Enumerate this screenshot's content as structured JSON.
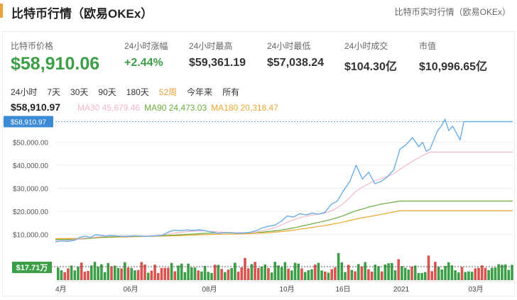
{
  "header": {
    "title": "比特币行情（欧易OKEx）",
    "link_label": "比特币实时行情（欧易OKEx）"
  },
  "stats": {
    "price_label": "比特币价格",
    "price_value": "$58,910.06",
    "change_label": "24小时涨幅",
    "change_value": "+2.44%",
    "high_label": "24小时最高",
    "high_value": "$59,361.19",
    "low_label": "24小时最低",
    "low_value": "$57,038.24",
    "volume_label": "24小时成交",
    "volume_value": "$104.30亿",
    "cap_label": "市值",
    "cap_value": "$10,996.65亿"
  },
  "ranges": {
    "items": [
      "24小时",
      "7天",
      "30天",
      "90天",
      "180天",
      "52周",
      "今年来",
      "所有"
    ],
    "active": "52周"
  },
  "legend": {
    "price": "$58,910.97",
    "ma30_label": "MA30 45,679.46",
    "ma90_label": "MA90 24,473.03",
    "ma180_label": "MA180 20,318.47"
  },
  "colors": {
    "accent": "#e8a33d",
    "up_green": "#3c9f47",
    "down_red": "#d9534f",
    "price_line": "#6aaee8",
    "ma30": "#f4b8c6",
    "ma90": "#6bab3c",
    "ma180": "#f0a830"
  },
  "chart_data": {
    "type": "line",
    "y_ticks": [
      "$50,000.00",
      "$40,000.00",
      "$30,000.00",
      "$20,000.00",
      "$10,000.00"
    ],
    "ylim": [
      0,
      60000
    ],
    "x_ticks": [
      "4月",
      "06月",
      "08月",
      "10月",
      "16日",
      "2021",
      "03月"
    ],
    "current_price_label": "$58,910.97",
    "volume_label": "$17.71万",
    "x": [
      0,
      5,
      10,
      15,
      20,
      24,
      28,
      32,
      36,
      40,
      44,
      48,
      52,
      56,
      60,
      64,
      68,
      72,
      76,
      80,
      85,
      90,
      95,
      100,
      105,
      110,
      115,
      120,
      125,
      130,
      135,
      140,
      145,
      150,
      155,
      160,
      165,
      170,
      175,
      180,
      185,
      190,
      195,
      200,
      205,
      210,
      215,
      220,
      225,
      230,
      235,
      240,
      245,
      250,
      255,
      260,
      265,
      270,
      275,
      280,
      285,
      290,
      293,
      296,
      299,
      302,
      305,
      308,
      311,
      314,
      317,
      320,
      323,
      326,
      329,
      332,
      335,
      338,
      341,
      344,
      347,
      350,
      353,
      356,
      359,
      362,
      365
    ],
    "series": [
      {
        "key": "price",
        "values": [
          6800,
          7200,
          7000,
          7400,
          8800,
          9200,
          8700,
          9800,
          9600,
          9300,
          9500,
          9400,
          9200,
          9100,
          9300,
          9400,
          9200,
          9100,
          9300,
          9400,
          9500,
          11000,
          11800,
          11600,
          11900,
          11700,
          12000,
          11500,
          11000,
          10500,
          10700,
          10800,
          10500,
          10600,
          10900,
          11500,
          12800,
          13500,
          14000,
          15600,
          18000,
          17500,
          19000,
          18500,
          19200,
          18800,
          19500,
          23000,
          24500,
          29000,
          33000,
          40000,
          34000,
          37000,
          32000,
          33000,
          35000,
          38000,
          47000,
          49000,
          52000,
          48000,
          50000,
          46000,
          47000,
          51000,
          55000,
          57000,
          60000,
          55000,
          57000,
          54000,
          51000,
          58910,
          58910,
          58910,
          58910,
          58910,
          58910,
          58910,
          58910,
          58910,
          58910,
          58910,
          58910,
          58910,
          58910
        ]
      },
      {
        "key": "ma30",
        "values": [
          7200,
          7300,
          7400,
          7700,
          8100,
          8400,
          8600,
          8800,
          9000,
          9100,
          9200,
          9300,
          9300,
          9300,
          9300,
          9300,
          9300,
          9350,
          9400,
          9500,
          9800,
          10200,
          10600,
          10900,
          11200,
          11400,
          11500,
          11500,
          11300,
          11100,
          10900,
          10800,
          10700,
          10700,
          10800,
          11000,
          11500,
          12200,
          13000,
          14000,
          15200,
          16300,
          17200,
          17900,
          18400,
          18800,
          19200,
          20200,
          21500,
          23500,
          26000,
          28800,
          30500,
          32000,
          33300,
          34200,
          35200,
          36300,
          38200,
          40000,
          41800,
          43200,
          44200,
          45000,
          45679,
          45679,
          45679,
          45679,
          45679,
          45679,
          45679,
          45679,
          45679,
          45679,
          45679,
          45679,
          45679,
          45679,
          45679,
          45679,
          45679,
          45679,
          45679,
          45679,
          45679,
          45679,
          45679
        ]
      },
      {
        "key": "ma90",
        "values": [
          7800,
          7800,
          7800,
          7900,
          8000,
          8100,
          8300,
          8500,
          8700,
          8800,
          8900,
          9000,
          9100,
          9150,
          9200,
          9200,
          9250,
          9300,
          9350,
          9400,
          9500,
          9600,
          9700,
          9850,
          10000,
          10150,
          10300,
          10450,
          10550,
          10600,
          10650,
          10700,
          10700,
          10700,
          10750,
          10850,
          11000,
          11250,
          11500,
          11850,
          12300,
          12800,
          13400,
          14000,
          14600,
          15200,
          15800,
          16500,
          17300,
          18200,
          19200,
          20300,
          21000,
          21800,
          22500,
          23100,
          23600,
          24000,
          24473,
          24473,
          24473,
          24473,
          24473,
          24473,
          24473,
          24473,
          24473,
          24473,
          24473,
          24473,
          24473,
          24473,
          24473,
          24473,
          24473,
          24473,
          24473,
          24473,
          24473,
          24473,
          24473,
          24473,
          24473,
          24473,
          24473,
          24473,
          24473
        ]
      },
      {
        "key": "ma180",
        "values": [
          8200,
          8200,
          8200,
          8200,
          8300,
          8300,
          8400,
          8500,
          8600,
          8700,
          8750,
          8800,
          8850,
          8900,
          8950,
          9000,
          9050,
          9100,
          9150,
          9200,
          9250,
          9300,
          9400,
          9500,
          9600,
          9700,
          9800,
          9900,
          10000,
          10050,
          10100,
          10150,
          10200,
          10250,
          10300,
          10400,
          10550,
          10750,
          10950,
          11200,
          11500,
          11850,
          12250,
          12650,
          13050,
          13450,
          13850,
          14300,
          14800,
          15400,
          16000,
          16700,
          17200,
          17700,
          18200,
          18700,
          19200,
          19700,
          20318,
          20318,
          20318,
          20318,
          20318,
          20318,
          20318,
          20318,
          20318,
          20318,
          20318,
          20318,
          20318,
          20318,
          20318,
          20318,
          20318,
          20318,
          20318,
          20318,
          20318,
          20318,
          20318,
          20318,
          20318,
          20318,
          20318,
          20318,
          20318
        ]
      }
    ]
  }
}
